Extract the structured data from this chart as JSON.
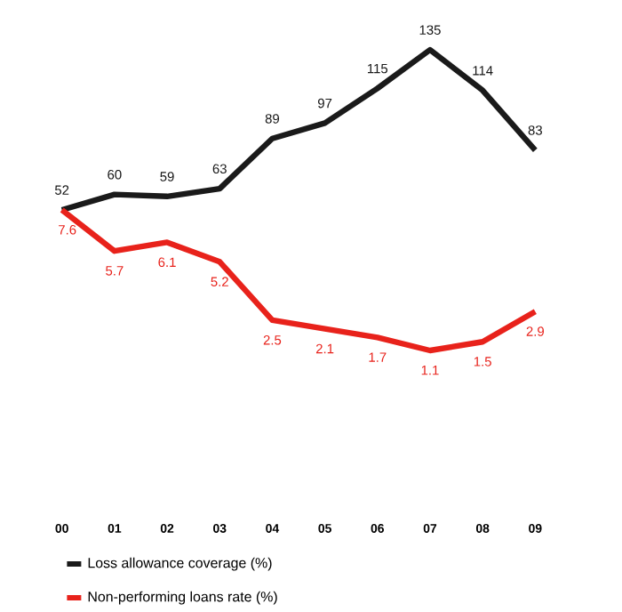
{
  "chart_data": {
    "type": "line",
    "categories": [
      "00",
      "01",
      "02",
      "03",
      "04",
      "05",
      "06",
      "07",
      "08",
      "09"
    ],
    "series": [
      {
        "name": "Loss allowance coverage (%)",
        "color": "#1a1a1a",
        "values": [
          52,
          60,
          59,
          63,
          89,
          97,
          115,
          135,
          114,
          83
        ]
      },
      {
        "name": "Non-performing loans rate (%)",
        "color": "#e8221b",
        "values": [
          7.6,
          5.7,
          6.1,
          5.2,
          2.5,
          2.1,
          1.7,
          1.1,
          1.5,
          2.9
        ],
        "axis": "y2"
      }
    ],
    "data_labels": true,
    "legend": "bottom left",
    "tick_labels": "x",
    "marker": "none",
    "line_style": "solid"
  }
}
